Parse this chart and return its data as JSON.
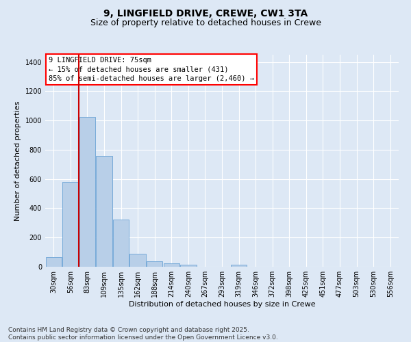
{
  "title1": "9, LINGFIELD DRIVE, CREWE, CW1 3TA",
  "title2": "Size of property relative to detached houses in Crewe",
  "xlabel": "Distribution of detached houses by size in Crewe",
  "ylabel": "Number of detached properties",
  "categories": [
    "30sqm",
    "56sqm",
    "83sqm",
    "109sqm",
    "135sqm",
    "162sqm",
    "188sqm",
    "214sqm",
    "240sqm",
    "267sqm",
    "293sqm",
    "319sqm",
    "346sqm",
    "372sqm",
    "398sqm",
    "425sqm",
    "451sqm",
    "477sqm",
    "503sqm",
    "530sqm",
    "556sqm"
  ],
  "values": [
    65,
    580,
    1025,
    760,
    325,
    90,
    38,
    22,
    12,
    0,
    0,
    12,
    0,
    0,
    0,
    0,
    0,
    0,
    0,
    0,
    0
  ],
  "bar_color": "#b8cfe8",
  "bar_edge_color": "#6ba3d6",
  "vline_color": "#cc0000",
  "annotation_box_text": "9 LINGFIELD DRIVE: 75sqm\n← 15% of detached houses are smaller (431)\n85% of semi-detached houses are larger (2,460) →",
  "ylim": [
    0,
    1450
  ],
  "yticks": [
    0,
    200,
    400,
    600,
    800,
    1000,
    1200,
    1400
  ],
  "bg_color": "#dde8f5",
  "footer": "Contains HM Land Registry data © Crown copyright and database right 2025.\nContains public sector information licensed under the Open Government Licence v3.0.",
  "title1_fontsize": 10,
  "title2_fontsize": 9,
  "annotation_fontsize": 7.5,
  "footer_fontsize": 6.5,
  "ylabel_fontsize": 8,
  "xlabel_fontsize": 8,
  "tick_fontsize": 7
}
